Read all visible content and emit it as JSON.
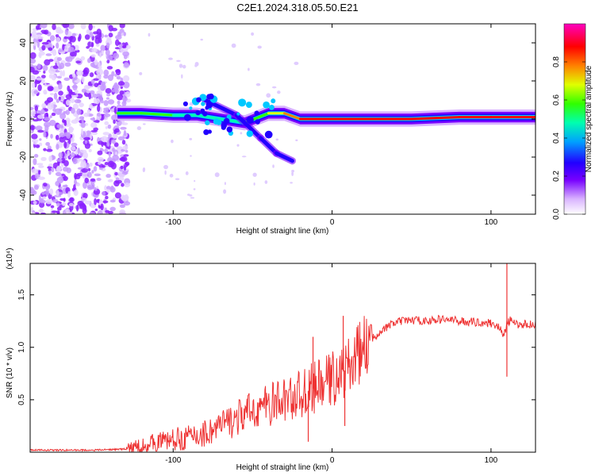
{
  "title": "C2E1.2024.318.05.50.E21",
  "chart_data": [
    {
      "type": "heatmap",
      "title": "C2E1.2024.318.05.50.E21",
      "xlabel": "Height of straight line (km)",
      "ylabel": "Frequency (Hz)",
      "xlim": [
        -190,
        128
      ],
      "ylim": [
        -50,
        50
      ],
      "xticks": [
        -100,
        0,
        100
      ],
      "yticks": [
        -40,
        -20,
        0,
        20,
        40
      ],
      "colorbar": {
        "label": "Normalized spectral amplitude",
        "range": [
          0.0,
          1.0
        ],
        "ticks": [
          "0.0",
          "0.2",
          "0.4",
          "0.6",
          "0.8"
        ],
        "tick_values": [
          0.0,
          0.2,
          0.4,
          0.6,
          0.8
        ],
        "colors": [
          "#ffffff",
          "#b27fff",
          "#7700ff",
          "#2000ff",
          "#00a0ff",
          "#00ffb0",
          "#30ff00",
          "#e0ff00",
          "#ff8000",
          "#ff0000",
          "#ff0080",
          "#ff00c0"
        ]
      },
      "ridge": [
        {
          "x": -135,
          "y": 3,
          "amp": 0.45
        },
        {
          "x": -120,
          "y": 3,
          "amp": 0.5
        },
        {
          "x": -100,
          "y": 2,
          "amp": 0.45
        },
        {
          "x": -85,
          "y": 2,
          "amp": 0.4
        },
        {
          "x": -70,
          "y": 0,
          "amp": 0.4
        },
        {
          "x": -55,
          "y": -2,
          "amp": 0.35
        },
        {
          "x": -40,
          "y": 3,
          "amp": 0.6
        },
        {
          "x": -30,
          "y": 3,
          "amp": 0.7
        },
        {
          "x": -20,
          "y": 0,
          "amp": 0.85
        },
        {
          "x": 0,
          "y": 0,
          "amp": 0.9
        },
        {
          "x": 20,
          "y": 0,
          "amp": 0.92
        },
        {
          "x": 50,
          "y": 0,
          "amp": 0.92
        },
        {
          "x": 80,
          "y": 1,
          "amp": 0.95
        },
        {
          "x": 100,
          "y": 1,
          "amp": 0.95
        },
        {
          "x": 128,
          "y": 1,
          "amp": 0.9
        }
      ],
      "branch": [
        {
          "x": -80,
          "y": 10
        },
        {
          "x": -60,
          "y": 2
        },
        {
          "x": -45,
          "y": -10
        },
        {
          "x": -35,
          "y": -18
        },
        {
          "x": -25,
          "y": -22
        }
      ]
    },
    {
      "type": "line",
      "xlabel": "Height of straight line (km)",
      "ylabel": "SNR (10 * v/v)",
      "y_multiplier": "(x10⁴)",
      "xlim": [
        -190,
        128
      ],
      "ylim": [
        0,
        1.8
      ],
      "xticks": [
        -100,
        0,
        100
      ],
      "yticks": [
        0.5,
        1.0,
        1.5
      ],
      "color": "#ee3333",
      "series": [
        {
          "name": "SNR",
          "x": [
            -190,
            -170,
            -150,
            -130,
            -120,
            -110,
            -100,
            -90,
            -80,
            -70,
            -60,
            -50,
            -40,
            -30,
            -20,
            -10,
            0,
            10,
            20,
            30,
            40,
            50,
            60,
            70,
            80,
            90,
            100,
            105,
            108,
            110,
            112,
            115,
            128
          ],
          "y": [
            0.02,
            0.02,
            0.02,
            0.03,
            0.06,
            0.1,
            0.12,
            0.14,
            0.18,
            0.25,
            0.32,
            0.4,
            0.45,
            0.5,
            0.55,
            0.62,
            0.7,
            0.8,
            1.0,
            1.15,
            1.24,
            1.26,
            1.25,
            1.27,
            1.25,
            1.24,
            1.23,
            1.2,
            1.1,
            1.22,
            1.26,
            1.22,
            1.22
          ]
        }
      ],
      "spikes": [
        {
          "x": 7,
          "y": 1.3
        },
        {
          "x": 8,
          "y": 0.25
        },
        {
          "x": 110,
          "y": 1.8
        },
        {
          "x": 110,
          "y": 0.72
        },
        {
          "x": -15,
          "y": 0.1
        },
        {
          "x": -12,
          "y": 1.1
        }
      ]
    }
  ]
}
